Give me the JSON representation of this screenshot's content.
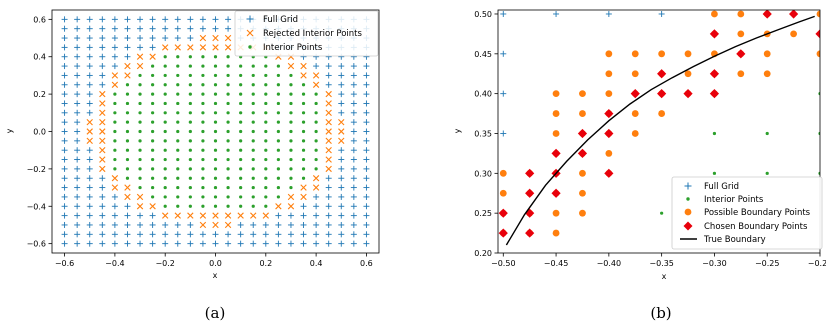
{
  "colors": {
    "grid": "#1f77b4",
    "rejected": "#ff7f0e",
    "interior": "#2ca02c",
    "possible": "#ff7f0e",
    "chosen": "#e8000b",
    "boundary": "#000000"
  },
  "chart_data": [
    {
      "type": "scatter",
      "caption": "(a)",
      "xlabel": "x",
      "ylabel": "y",
      "xlim": [
        -0.65,
        0.65
      ],
      "ylim": [
        -0.65,
        0.65
      ],
      "xticks": [
        -0.6,
        -0.4,
        -0.2,
        0.0,
        0.2,
        0.4,
        0.6
      ],
      "xtick_labels": [
        "−0.6",
        "−0.4",
        "−0.2",
        "0.0",
        "0.2",
        "0.4",
        "0.6"
      ],
      "yticks": [
        -0.6,
        -0.4,
        -0.2,
        0.0,
        0.2,
        0.4,
        0.6
      ],
      "ytick_labels": [
        "−0.6",
        "−0.4",
        "−0.2",
        "0.0",
        "0.2",
        "0.4",
        "0.6"
      ],
      "grid": false,
      "legend": "top-right",
      "grid_spacing": 0.05,
      "grid_range": [
        -0.6,
        0.6
      ],
      "interior_rule": "x^2 + y^2 < 0.2025",
      "rejected_rule": "0.2025 <= x^2 + y^2 < 0.26",
      "series": [
        {
          "name": "Full Grid",
          "marker": "plus"
        },
        {
          "name": "Rejected Interior Points",
          "marker": "x"
        },
        {
          "name": "Interior Points",
          "marker": "dot"
        }
      ]
    },
    {
      "type": "scatter",
      "caption": "(b)",
      "xlabel": "x",
      "ylabel": "y",
      "xlim": [
        -0.505,
        -0.2
      ],
      "ylim": [
        0.2,
        0.505
      ],
      "xticks": [
        -0.5,
        -0.45,
        -0.4,
        -0.35,
        -0.3,
        -0.25,
        -0.2
      ],
      "xtick_labels": [
        "−0.50",
        "−0.45",
        "−0.40",
        "−0.35",
        "−0.30",
        "−0.25",
        "−0.20"
      ],
      "yticks": [
        0.2,
        0.25,
        0.3,
        0.35,
        0.4,
        0.45,
        0.5
      ],
      "ytick_labels": [
        "0.20",
        "0.25",
        "0.30",
        "0.35",
        "0.40",
        "0.45",
        "0.50"
      ],
      "grid": false,
      "legend": "bottom-right",
      "series": [
        {
          "name": "Full Grid",
          "marker": "plus",
          "points": [
            [
              -0.5,
              0.5
            ],
            [
              -0.45,
              0.5
            ],
            [
              -0.4,
              0.5
            ],
            [
              -0.35,
              0.5
            ],
            [
              -0.5,
              0.45
            ],
            [
              -0.5,
              0.4
            ],
            [
              -0.5,
              0.35
            ]
          ]
        },
        {
          "name": "Interior Points",
          "marker": "dot",
          "points": [
            [
              -0.2,
              0.4
            ],
            [
              -0.3,
              0.35
            ],
            [
              -0.25,
              0.35
            ],
            [
              -0.2,
              0.35
            ],
            [
              -0.3,
              0.3
            ],
            [
              -0.25,
              0.3
            ],
            [
              -0.2,
              0.3
            ],
            [
              -0.35,
              0.25
            ]
          ]
        },
        {
          "name": "Possible Boundary Points",
          "marker": "circle",
          "points": [
            [
              -0.3,
              0.5
            ],
            [
              -0.275,
              0.5
            ],
            [
              -0.25,
              0.5
            ],
            [
              -0.2,
              0.5
            ],
            [
              -0.3,
              0.475
            ],
            [
              -0.275,
              0.475
            ],
            [
              -0.25,
              0.475
            ],
            [
              -0.225,
              0.475
            ],
            [
              -0.4,
              0.45
            ],
            [
              -0.375,
              0.45
            ],
            [
              -0.35,
              0.45
            ],
            [
              -0.325,
              0.45
            ],
            [
              -0.3,
              0.45
            ],
            [
              -0.275,
              0.45
            ],
            [
              -0.25,
              0.45
            ],
            [
              -0.2,
              0.45
            ],
            [
              -0.4,
              0.425
            ],
            [
              -0.375,
              0.425
            ],
            [
              -0.35,
              0.425
            ],
            [
              -0.325,
              0.425
            ],
            [
              -0.3,
              0.425
            ],
            [
              -0.275,
              0.425
            ],
            [
              -0.25,
              0.425
            ],
            [
              -0.45,
              0.4
            ],
            [
              -0.425,
              0.4
            ],
            [
              -0.4,
              0.4
            ],
            [
              -0.375,
              0.4
            ],
            [
              -0.35,
              0.4
            ],
            [
              -0.325,
              0.4
            ],
            [
              -0.3,
              0.4
            ],
            [
              -0.45,
              0.375
            ],
            [
              -0.425,
              0.375
            ],
            [
              -0.4,
              0.375
            ],
            [
              -0.375,
              0.375
            ],
            [
              -0.35,
              0.375
            ],
            [
              -0.45,
              0.35
            ],
            [
              -0.425,
              0.35
            ],
            [
              -0.4,
              0.35
            ],
            [
              -0.375,
              0.35
            ],
            [
              -0.45,
              0.325
            ],
            [
              -0.425,
              0.325
            ],
            [
              -0.4,
              0.325
            ],
            [
              -0.5,
              0.3
            ],
            [
              -0.475,
              0.3
            ],
            [
              -0.45,
              0.3
            ],
            [
              -0.425,
              0.3
            ],
            [
              -0.4,
              0.3
            ],
            [
              -0.5,
              0.275
            ],
            [
              -0.475,
              0.275
            ],
            [
              -0.45,
              0.275
            ],
            [
              -0.425,
              0.275
            ],
            [
              -0.5,
              0.25
            ],
            [
              -0.475,
              0.25
            ],
            [
              -0.45,
              0.25
            ],
            [
              -0.425,
              0.25
            ],
            [
              -0.5,
              0.225
            ],
            [
              -0.475,
              0.225
            ],
            [
              -0.45,
              0.225
            ]
          ]
        },
        {
          "name": "Chosen Boundary Points",
          "marker": "diamond",
          "points": [
            [
              -0.25,
              0.5
            ],
            [
              -0.225,
              0.5
            ],
            [
              -0.3,
              0.475
            ],
            [
              -0.2,
              0.475
            ],
            [
              -0.275,
              0.45
            ],
            [
              -0.3,
              0.425
            ],
            [
              -0.35,
              0.425
            ],
            [
              -0.3,
              0.4
            ],
            [
              -0.325,
              0.4
            ],
            [
              -0.375,
              0.4
            ],
            [
              -0.35,
              0.4
            ],
            [
              -0.4,
              0.375
            ],
            [
              -0.4,
              0.35
            ],
            [
              -0.425,
              0.35
            ],
            [
              -0.45,
              0.325
            ],
            [
              -0.425,
              0.325
            ],
            [
              -0.4,
              0.3
            ],
            [
              -0.45,
              0.3
            ],
            [
              -0.475,
              0.3
            ],
            [
              -0.45,
              0.275
            ],
            [
              -0.475,
              0.275
            ],
            [
              -0.5,
              0.25
            ],
            [
              -0.475,
              0.25
            ],
            [
              -0.5,
              0.225
            ],
            [
              -0.475,
              0.225
            ]
          ]
        },
        {
          "name": "True Boundary",
          "marker": "line",
          "points": [
            [
              -0.497,
              0.21
            ],
            [
              -0.48,
              0.248
            ],
            [
              -0.46,
              0.285
            ],
            [
              -0.44,
              0.315
            ],
            [
              -0.42,
              0.342
            ],
            [
              -0.4,
              0.366
            ],
            [
              -0.38,
              0.387
            ],
            [
              -0.36,
              0.405
            ],
            [
              -0.34,
              0.42
            ],
            [
              -0.32,
              0.434
            ],
            [
              -0.3,
              0.447
            ],
            [
              -0.28,
              0.459
            ],
            [
              -0.26,
              0.47
            ],
            [
              -0.24,
              0.48
            ],
            [
              -0.22,
              0.49
            ],
            [
              -0.205,
              0.497
            ]
          ]
        }
      ]
    }
  ]
}
